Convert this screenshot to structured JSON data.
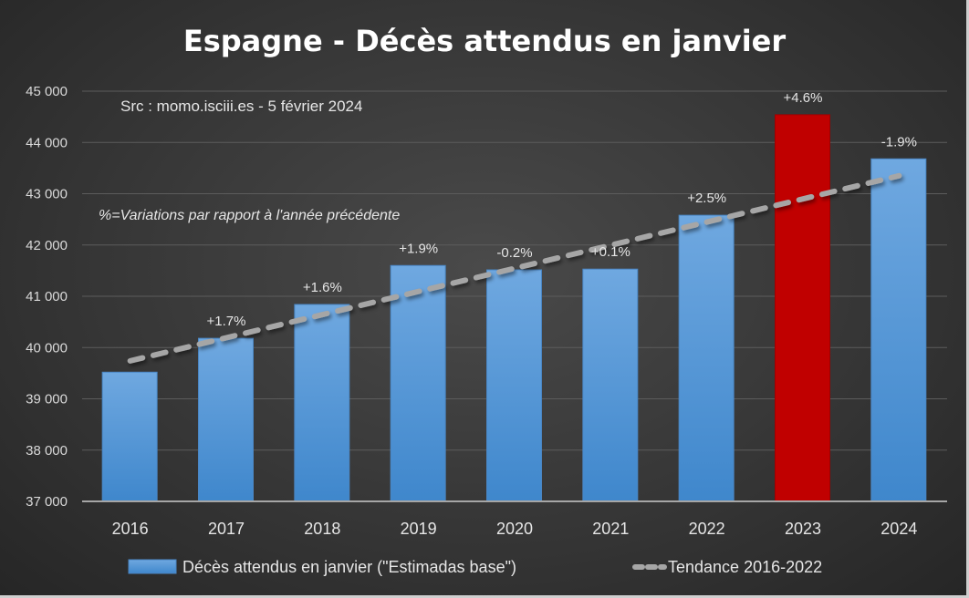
{
  "chart_data": {
    "type": "bar",
    "title": "Espagne - Décès attendus en janvier",
    "annotations": [
      "Src : momo.isciii.es - 5 février 2024",
      "%=Variations par rapport à l'année précédente"
    ],
    "xlabel": "",
    "ylabel": "",
    "categories": [
      "2016",
      "2017",
      "2018",
      "2019",
      "2020",
      "2021",
      "2022",
      "2023",
      "2024"
    ],
    "series": [
      {
        "name": "Décès attendus en janvier (\"Estimadas base\")",
        "type": "bar",
        "values": [
          39520,
          40180,
          40840,
          41600,
          41515,
          41530,
          42580,
          44540,
          43680
        ],
        "data_labels": [
          "",
          "+1.7%",
          "+1.6%",
          "+1.9%",
          "-0.2%",
          "+0.1%",
          "+2.5%",
          "+4.6%",
          "-1.9%"
        ],
        "color": "#5b9bd5",
        "highlight": {
          "category": "2023",
          "color": "#c00000"
        }
      },
      {
        "name": "Tendance 2016-2022",
        "type": "line",
        "style": "dashed",
        "color": "#a6a6a6",
        "start": {
          "x": "2016",
          "y": 39740
        },
        "end": {
          "x": "2024",
          "y": 43350
        }
      }
    ],
    "ylim": [
      37000,
      45000
    ],
    "yticks": [
      37000,
      38000,
      39000,
      40000,
      41000,
      42000,
      43000,
      44000,
      45000
    ],
    "ytick_labels": [
      "37 000",
      "38 000",
      "39 000",
      "40 000",
      "41 000",
      "42 000",
      "43 000",
      "44 000",
      "45 000"
    ],
    "grid": true,
    "legend_position": "bottom"
  }
}
